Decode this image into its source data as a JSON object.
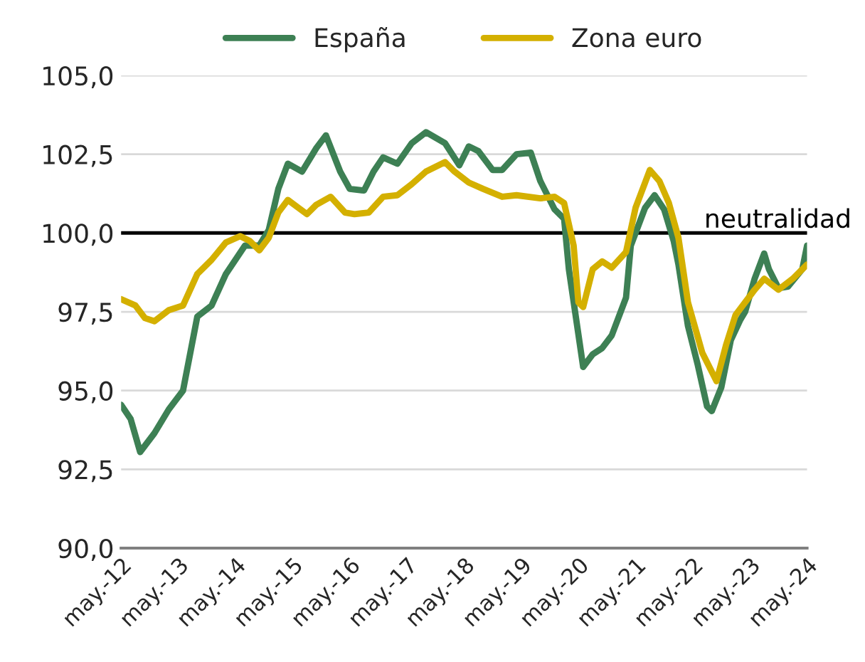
{
  "chart_data": {
    "type": "line",
    "xlim": [
      "2012-05",
      "2024-05"
    ],
    "xticks": [
      {
        "value": "2012-05",
        "label": "may.-12"
      },
      {
        "value": "2013-05",
        "label": "may.-13"
      },
      {
        "value": "2014-05",
        "label": "may.-14"
      },
      {
        "value": "2015-05",
        "label": "may.-15"
      },
      {
        "value": "2016-05",
        "label": "may.-16"
      },
      {
        "value": "2017-05",
        "label": "may.-17"
      },
      {
        "value": "2018-05",
        "label": "may.-18"
      },
      {
        "value": "2019-05",
        "label": "may.-19"
      },
      {
        "value": "2020-05",
        "label": "may.-20"
      },
      {
        "value": "2021-05",
        "label": "may.-21"
      },
      {
        "value": "2022-05",
        "label": "may.-22"
      },
      {
        "value": "2023-05",
        "label": "may.-23"
      },
      {
        "value": "2024-05",
        "label": "may.-24"
      }
    ],
    "ylim": [
      90,
      105
    ],
    "yticks": [
      {
        "value": 90,
        "label": "90,0"
      },
      {
        "value": 92.5,
        "label": "92,5"
      },
      {
        "value": 95,
        "label": "95,0"
      },
      {
        "value": 97.5,
        "label": "97,5"
      },
      {
        "value": 100,
        "label": "100,0"
      },
      {
        "value": 102.5,
        "label": "102,5"
      },
      {
        "value": 105,
        "label": "105,0"
      }
    ],
    "grid": "y",
    "legend": "top",
    "marker": "none",
    "line_style": "solid",
    "ref_lines": [
      {
        "axis": "y",
        "value": 100,
        "label": "neutralidad",
        "color": "#000000"
      }
    ],
    "series": [
      {
        "name": "España",
        "color": "#3d8054",
        "x": [
          "2012-05",
          "2012-07",
          "2012-09",
          "2012-12",
          "2013-03",
          "2013-06",
          "2013-09",
          "2013-12",
          "2014-03",
          "2014-07",
          "2014-10",
          "2014-12",
          "2015-02",
          "2015-04",
          "2015-07",
          "2015-10",
          "2015-12",
          "2016-03",
          "2016-05",
          "2016-08",
          "2016-10",
          "2016-12",
          "2017-03",
          "2017-06",
          "2017-09",
          "2018-01",
          "2018-04",
          "2018-06",
          "2018-08",
          "2018-11",
          "2019-01",
          "2019-04",
          "2019-07",
          "2019-09",
          "2019-12",
          "2020-02",
          "2020-03",
          "2020-06",
          "2020-08",
          "2020-10",
          "2020-12",
          "2021-03",
          "2021-04",
          "2021-07",
          "2021-09",
          "2021-11",
          "2022-01",
          "2022-02",
          "2022-04",
          "2022-06",
          "2022-08",
          "2022-09",
          "2022-11",
          "2023-01",
          "2023-03",
          "2023-04",
          "2023-06",
          "2023-08",
          "2023-09",
          "2023-11",
          "2024-01",
          "2024-04",
          "2024-05"
        ],
        "values": [
          94.55,
          94.1,
          93.05,
          93.65,
          94.4,
          95.0,
          97.35,
          97.7,
          98.7,
          99.6,
          99.6,
          100.1,
          101.4,
          102.2,
          101.95,
          102.7,
          103.1,
          101.95,
          101.4,
          101.35,
          101.95,
          102.4,
          102.2,
          102.85,
          103.2,
          102.85,
          102.15,
          102.75,
          102.6,
          102.0,
          102.0,
          102.5,
          102.55,
          101.65,
          100.75,
          100.45,
          98.85,
          95.75,
          96.15,
          96.35,
          96.75,
          97.95,
          99.6,
          100.8,
          101.2,
          100.75,
          99.75,
          99.0,
          97.05,
          95.85,
          94.5,
          94.35,
          95.1,
          96.6,
          97.25,
          97.5,
          98.55,
          99.35,
          98.85,
          98.25,
          98.3,
          98.85,
          99.6
        ]
      },
      {
        "name": "Zona euro",
        "color": "#d4b000",
        "x": [
          "2012-05",
          "2012-08",
          "2012-10",
          "2012-12",
          "2013-03",
          "2013-06",
          "2013-09",
          "2013-12",
          "2014-03",
          "2014-06",
          "2014-08",
          "2014-10",
          "2014-12",
          "2015-02",
          "2015-04",
          "2015-08",
          "2015-10",
          "2016-01",
          "2016-04",
          "2016-06",
          "2016-09",
          "2016-12",
          "2017-03",
          "2017-06",
          "2017-09",
          "2018-01",
          "2018-03",
          "2018-06",
          "2018-09",
          "2019-01",
          "2019-04",
          "2019-09",
          "2019-12",
          "2020-02",
          "2020-04",
          "2020-05",
          "2020-06",
          "2020-08",
          "2020-10",
          "2020-12",
          "2021-03",
          "2021-05",
          "2021-08",
          "2021-10",
          "2021-12",
          "2022-02",
          "2022-04",
          "2022-07",
          "2022-10",
          "2022-12",
          "2023-02",
          "2023-06",
          "2023-08",
          "2023-11",
          "2024-02",
          "2024-05"
        ],
        "values": [
          97.9,
          97.7,
          97.3,
          97.2,
          97.55,
          97.7,
          98.7,
          99.15,
          99.7,
          99.9,
          99.75,
          99.45,
          99.85,
          100.65,
          101.05,
          100.6,
          100.9,
          101.15,
          100.65,
          100.6,
          100.65,
          101.15,
          101.2,
          101.55,
          101.95,
          102.25,
          101.95,
          101.6,
          101.4,
          101.15,
          101.2,
          101.1,
          101.15,
          100.95,
          99.6,
          97.8,
          97.65,
          98.85,
          99.1,
          98.9,
          99.4,
          100.8,
          102.0,
          101.65,
          100.95,
          99.85,
          97.8,
          96.2,
          95.3,
          96.45,
          97.4,
          98.2,
          98.55,
          98.2,
          98.55,
          99.0
        ]
      }
    ]
  }
}
